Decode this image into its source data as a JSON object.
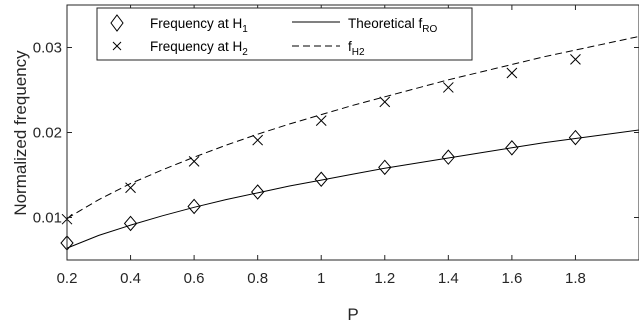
{
  "chart_data": {
    "type": "line",
    "xlabel": "P",
    "ylabel": "Normalized frequency",
    "xlim": [
      0.2,
      2.0
    ],
    "ylim": [
      0.005,
      0.035
    ],
    "x_ticks": [
      "0.2",
      "0.4",
      "0.6",
      "0.8",
      "1",
      "1.2",
      "1.4",
      "1.6",
      "1.8"
    ],
    "y_ticks": [
      "0.01",
      "0.02",
      "0.03"
    ],
    "x_tick_values": [
      0.2,
      0.4,
      0.6,
      0.8,
      1.0,
      1.2,
      1.4,
      1.6,
      1.8
    ],
    "y_tick_values": [
      0.01,
      0.02,
      0.03
    ],
    "legend_position": "top",
    "grid": false,
    "series": [
      {
        "name": "Frequency at H",
        "name_sub": "1",
        "style": "markers",
        "marker": "diamond",
        "x": [
          0.2,
          0.4,
          0.6,
          0.8,
          1.0,
          1.2,
          1.4,
          1.6,
          1.8
        ],
        "y": [
          0.007,
          0.0093,
          0.0113,
          0.013,
          0.0145,
          0.0159,
          0.0171,
          0.0182,
          0.0194
        ]
      },
      {
        "name": "Frequency at H",
        "name_sub": "2",
        "style": "markers",
        "marker": "x",
        "x": [
          0.2,
          0.4,
          0.6,
          0.8,
          1.0,
          1.2,
          1.4,
          1.6,
          1.8
        ],
        "y": [
          0.0098,
          0.0135,
          0.0166,
          0.0191,
          0.0214,
          0.0236,
          0.0253,
          0.027,
          0.0286
        ]
      },
      {
        "name": "Theoretical f",
        "name_sub": "RO",
        "style": "solid",
        "x": [
          0.2,
          0.3,
          0.4,
          0.5,
          0.6,
          0.7,
          0.8,
          0.9,
          1.0,
          1.1,
          1.2,
          1.3,
          1.4,
          1.5,
          1.6,
          1.7,
          1.8,
          1.9,
          2.0
        ],
        "y": [
          0.0064,
          0.0079,
          0.0091,
          0.0102,
          0.0112,
          0.0121,
          0.0129,
          0.0137,
          0.0144,
          0.0151,
          0.0158,
          0.0164,
          0.017,
          0.0176,
          0.0182,
          0.0188,
          0.0193,
          0.0198,
          0.0203
        ]
      },
      {
        "name": "f",
        "name_sub": "H2",
        "style": "dashed",
        "x": [
          0.2,
          0.3,
          0.4,
          0.5,
          0.6,
          0.7,
          0.8,
          0.9,
          1.0,
          1.1,
          1.2,
          1.3,
          1.4,
          1.5,
          1.6,
          1.7,
          1.8,
          1.9,
          2.0
        ],
        "y": [
          0.0099,
          0.0121,
          0.014,
          0.0156,
          0.0171,
          0.0185,
          0.0198,
          0.021,
          0.0221,
          0.0232,
          0.0242,
          0.0252,
          0.0262,
          0.0271,
          0.028,
          0.0289,
          0.0297,
          0.0305,
          0.0313
        ]
      }
    ]
  }
}
